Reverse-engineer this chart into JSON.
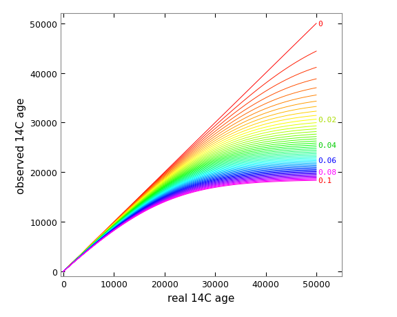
{
  "xlabel": "real 14C age",
  "ylabel": "observed 14C age",
  "xlim": [
    -500,
    55000
  ],
  "ylim": [
    -1000,
    52000
  ],
  "xticks": [
    0,
    10000,
    20000,
    30000,
    40000,
    50000
  ],
  "yticks": [
    0,
    10000,
    20000,
    30000,
    40000,
    50000
  ],
  "xmax_data": 50000,
  "n_lines": 51,
  "f_min": 0.0,
  "f_max": 0.1,
  "tau": 8033.0,
  "label_fs": 8,
  "axis_label_fs": 11,
  "tick_fs": 9,
  "labeled_fractions": [
    0.0,
    0.02,
    0.04,
    0.06,
    0.08,
    0.1
  ],
  "background": "white",
  "figwidth": 5.76,
  "figheight": 4.6,
  "dpi": 100
}
